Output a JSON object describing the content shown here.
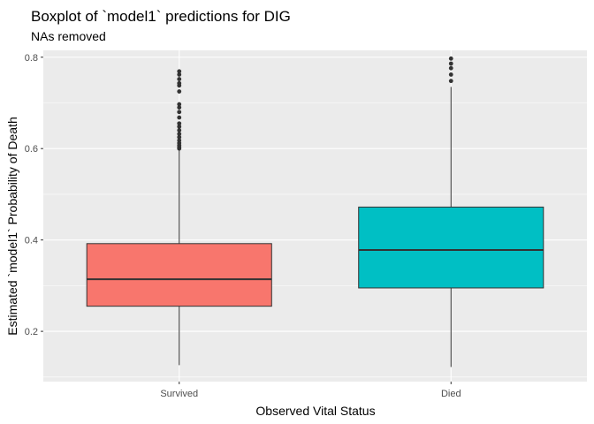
{
  "chart_data": {
    "type": "boxplot",
    "title": "Boxplot of `model1` predictions for DIG",
    "subtitle": "NAs removed",
    "xlabel": "Observed Vital Status",
    "ylabel": "Estimated `model1` Probability of Death",
    "ylim": [
      0.09,
      0.815
    ],
    "y_ticks": [
      0.2,
      0.4,
      0.6,
      0.8
    ],
    "y_tick_labels": [
      "0.2",
      "0.4",
      "0.6",
      "0.8"
    ],
    "categories": [
      "Survived",
      "Died"
    ],
    "boxes": [
      {
        "category": "Survived",
        "color": "#F8766D",
        "min": 0.126,
        "q1": 0.255,
        "median": 0.314,
        "q3": 0.392,
        "whisker_high": 0.598,
        "outliers": [
          0.6,
          0.603,
          0.607,
          0.612,
          0.618,
          0.625,
          0.632,
          0.64,
          0.648,
          0.655,
          0.668,
          0.68,
          0.69,
          0.697,
          0.725,
          0.738,
          0.743,
          0.752,
          0.762,
          0.769
        ]
      },
      {
        "category": "Died",
        "color": "#00BFC4",
        "min": 0.122,
        "q1": 0.295,
        "median": 0.378,
        "q3": 0.472,
        "whisker_high": 0.735,
        "outliers": [
          0.748,
          0.762,
          0.776,
          0.786,
          0.797
        ]
      }
    ],
    "grid": true,
    "legend": "none"
  }
}
